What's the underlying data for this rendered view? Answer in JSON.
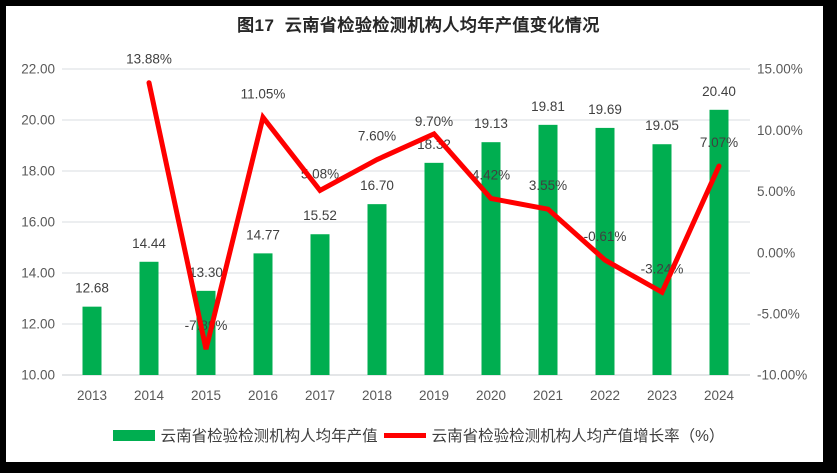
{
  "title": "图17  云南省检验检测机构人均年产值变化情况",
  "colors": {
    "bar": "#00AE50",
    "line": "#FF0000",
    "grid": "#D9DDE0",
    "baseline": "#C9CED1",
    "tick_text": "#595959",
    "label_text": "#404040",
    "title_text": "#262626",
    "background": "#FFFFFF",
    "frame": "#000000"
  },
  "legend": {
    "bar_label": "云南省检验检测机构人均年产值",
    "line_label": "云南省检验检测机构人均产值增长率（%）"
  },
  "chart_data": {
    "type": "bar+line",
    "title": "图17  云南省检验检测机构人均年产值变化情况",
    "categories": [
      "2013",
      "2014",
      "2015",
      "2016",
      "2017",
      "2018",
      "2019",
      "2020",
      "2021",
      "2022",
      "2023",
      "2024"
    ],
    "series": [
      {
        "name": "云南省检验检测机构人均年产值",
        "type": "bar",
        "axis": "left",
        "values": [
          12.68,
          14.44,
          13.3,
          14.77,
          15.52,
          16.7,
          18.32,
          19.13,
          19.81,
          19.69,
          19.05,
          20.4
        ],
        "labels": [
          "12.68",
          "14.44",
          "13.30",
          "14.77",
          "15.52",
          "16.70",
          "18.32",
          "19.13",
          "19.81",
          "19.69",
          "19.05",
          "20.40"
        ]
      },
      {
        "name": "云南省检验检测机构人均产值增长率（%）",
        "type": "line",
        "axis": "right",
        "values": [
          null,
          13.88,
          -7.89,
          11.05,
          5.08,
          7.6,
          9.7,
          4.42,
          3.55,
          -0.61,
          -3.24,
          7.07
        ],
        "labels": [
          null,
          "13.88%",
          "-7.89%",
          "11.05%",
          "5.08%",
          "7.60%",
          "9.70%",
          "4.42%",
          "3.55%",
          "-0.61%",
          "-3.24%",
          "7.07%"
        ]
      }
    ],
    "left_axis": {
      "min": 10,
      "max": 22,
      "step": 2,
      "ticks": [
        "22.00",
        "20.00",
        "18.00",
        "16.00",
        "14.00",
        "12.00",
        "10.00"
      ],
      "tick_values": [
        22,
        20,
        18,
        16,
        14,
        12,
        10
      ]
    },
    "right_axis": {
      "min": -10,
      "max": 15,
      "step": 5,
      "ticks": [
        "15.00%",
        "10.00%",
        "5.00%",
        "0.00%",
        "-5.00%",
        "-10.00%"
      ],
      "tick_values": [
        15,
        10,
        5,
        0,
        -5,
        -10
      ]
    },
    "grid": true,
    "legend_position": "bottom"
  }
}
